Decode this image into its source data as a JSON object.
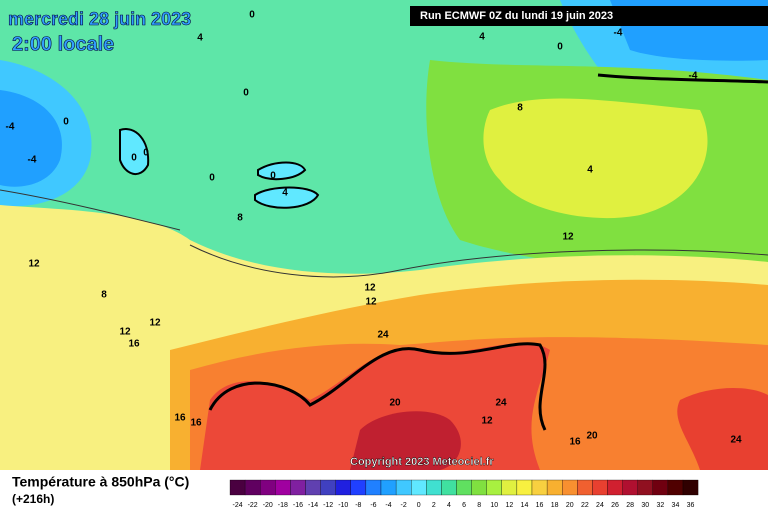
{
  "header": {
    "title": "mercredi 28 juin 2023",
    "time": "2:00 locale",
    "run": "Run ECMWF 0Z du lundi 19 juin 2023"
  },
  "map": {
    "contour_labels": [
      0,
      4,
      4,
      0,
      -4,
      -4,
      0,
      -4,
      0,
      -4,
      0,
      0,
      0,
      0,
      4,
      8,
      8,
      4,
      12,
      12,
      8,
      12,
      12,
      12,
      12,
      16,
      24,
      20,
      24,
      12,
      16,
      16,
      16,
      20,
      24
    ],
    "copyright": "Copyright 2023 Meteociel.fr"
  },
  "legend": {
    "title": "Température à 850hPa (°C)",
    "lead_time": "(+216h)",
    "ticks": [
      -24,
      -22,
      -20,
      -18,
      -16,
      -14,
      -12,
      -10,
      -8,
      -6,
      -4,
      -2,
      0,
      2,
      4,
      6,
      8,
      10,
      12,
      14,
      16,
      18,
      20,
      22,
      24,
      26,
      28,
      30,
      32,
      34,
      36
    ],
    "colors": [
      "#4a0040",
      "#600060",
      "#800080",
      "#a000a0",
      "#8020a0",
      "#6040b0",
      "#4040c0",
      "#2020e0",
      "#2040ff",
      "#2080ff",
      "#20a0ff",
      "#40c8ff",
      "#60e8ff",
      "#40e0d0",
      "#40e0a0",
      "#60e060",
      "#80e040",
      "#a8f040",
      "#e0f040",
      "#f8f040",
      "#f8d040",
      "#f8b030",
      "#f89030",
      "#f06030",
      "#e84030",
      "#d02030",
      "#b01030",
      "#901020",
      "#700010",
      "#500000",
      "#300000"
    ]
  }
}
